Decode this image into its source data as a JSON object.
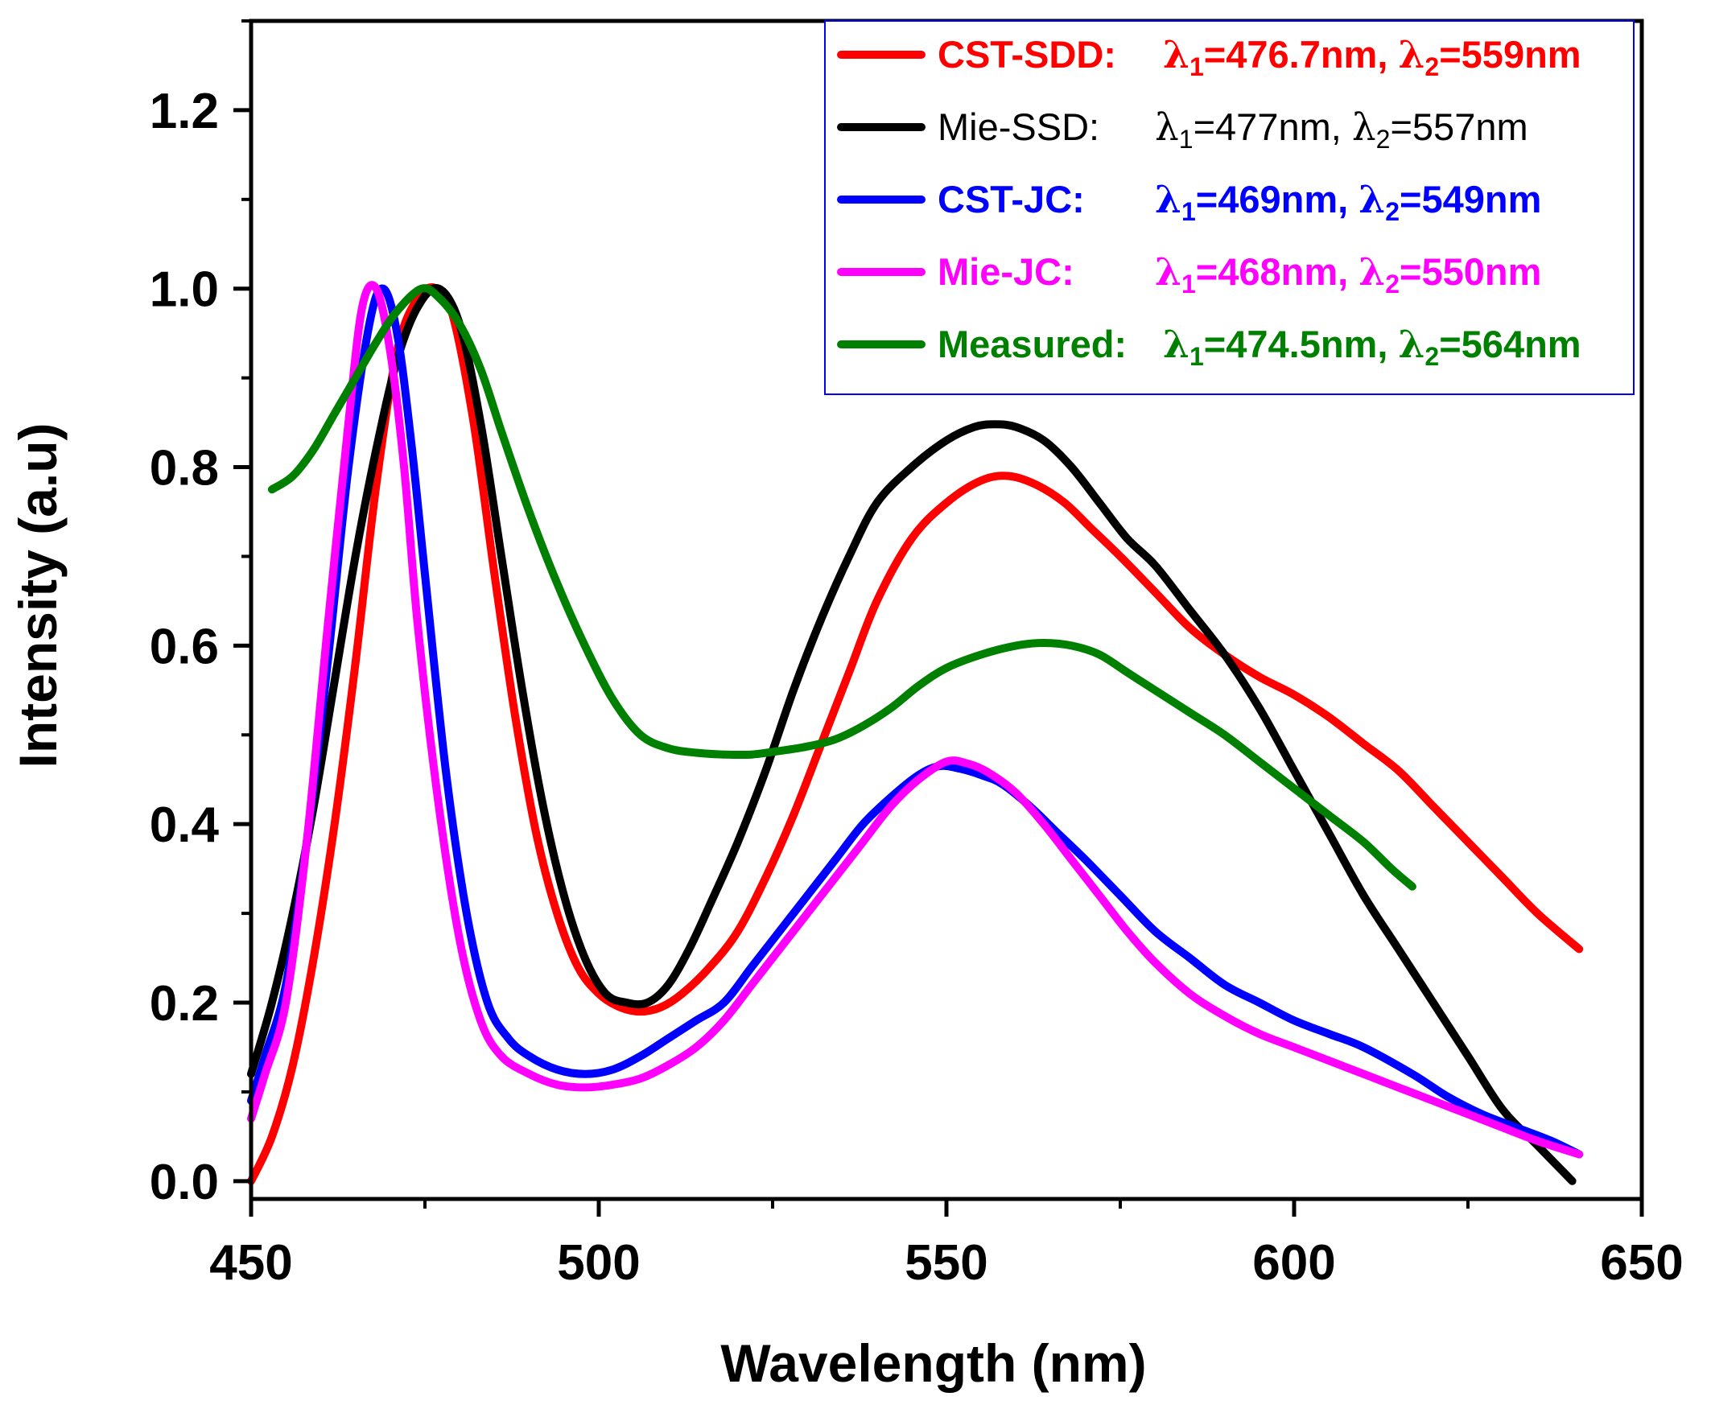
{
  "chart_data": {
    "type": "line",
    "xlabel": "Wavelength (nm)",
    "ylabel": "Intensity (a.u)",
    "xlim": [
      450,
      650
    ],
    "ylim": [
      -0.02,
      1.3
    ],
    "x_ticks": [
      450,
      500,
      550,
      600,
      650
    ],
    "x_tick_labels": [
      "450",
      "500",
      "550",
      "600",
      "650"
    ],
    "y_ticks": [
      0.0,
      0.2,
      0.4,
      0.6,
      0.8,
      1.0,
      1.2
    ],
    "y_tick_labels": [
      "0.0",
      "0.2",
      "0.4",
      "0.6",
      "0.8",
      "1.0",
      "1.2"
    ],
    "grid": false,
    "legend_position": "top-right",
    "series": [
      {
        "name": "CST-SDD:",
        "legend_lambda1": "476.7nm",
        "legend_lambda2": "559nm",
        "color": "#ff0000",
        "x": [
          450,
          453,
          456,
          459,
          462,
          465,
          468,
          471,
          474,
          476.7,
          479,
          482,
          485,
          488,
          491,
          494,
          497,
          500,
          503,
          506,
          509,
          512,
          516,
          520,
          524,
          528,
          532,
          536,
          540,
          545,
          550,
          555,
          559,
          563,
          567,
          571,
          575,
          580,
          585,
          590,
          595,
          600,
          605,
          610,
          615,
          620,
          625,
          630,
          635,
          641
        ],
        "y": [
          0.0,
          0.05,
          0.13,
          0.25,
          0.4,
          0.58,
          0.78,
          0.93,
          0.99,
          1.0,
          0.97,
          0.85,
          0.68,
          0.52,
          0.39,
          0.3,
          0.24,
          0.21,
          0.195,
          0.19,
          0.195,
          0.21,
          0.24,
          0.28,
          0.34,
          0.41,
          0.49,
          0.57,
          0.65,
          0.72,
          0.76,
          0.785,
          0.79,
          0.78,
          0.76,
          0.73,
          0.7,
          0.66,
          0.62,
          0.59,
          0.565,
          0.545,
          0.52,
          0.49,
          0.46,
          0.42,
          0.38,
          0.34,
          0.3,
          0.26
        ]
      },
      {
        "name": "Mie-SSD:",
        "legend_lambda1": "477nm",
        "legend_lambda2": "557nm",
        "color": "#000000",
        "x": [
          450,
          453,
          456,
          459,
          462,
          465,
          468,
          471,
          474,
          477,
          480,
          483,
          486,
          489,
          492,
          495,
          498,
          501,
          504,
          507,
          510,
          513,
          516,
          520,
          524,
          528,
          532,
          536,
          540,
          545,
          550,
          554,
          557,
          560,
          564,
          568,
          572,
          576,
          580,
          585,
          590,
          595,
          600,
          605,
          610,
          615,
          620,
          625,
          630,
          635,
          640
        ],
        "y": [
          0.12,
          0.2,
          0.3,
          0.42,
          0.56,
          0.7,
          0.82,
          0.92,
          0.98,
          1.0,
          0.96,
          0.85,
          0.7,
          0.55,
          0.42,
          0.32,
          0.25,
          0.21,
          0.2,
          0.2,
          0.22,
          0.26,
          0.31,
          0.38,
          0.46,
          0.55,
          0.63,
          0.7,
          0.76,
          0.8,
          0.83,
          0.845,
          0.848,
          0.845,
          0.83,
          0.8,
          0.76,
          0.72,
          0.69,
          0.64,
          0.59,
          0.53,
          0.46,
          0.39,
          0.32,
          0.26,
          0.2,
          0.14,
          0.08,
          0.04,
          0.0
        ]
      },
      {
        "name": "CST-JC:",
        "legend_lambda1": "469nm",
        "legend_lambda2": "549nm",
        "color": "#0000ff",
        "x": [
          450,
          452,
          455,
          458,
          461,
          464,
          467,
          469,
          471,
          473,
          475,
          478,
          481,
          484,
          487,
          490,
          494,
          498,
          502,
          506,
          510,
          514,
          518,
          522,
          526,
          530,
          534,
          538,
          542,
          546,
          549,
          552,
          555,
          558,
          562,
          566,
          570,
          575,
          580,
          585,
          590,
          595,
          600,
          605,
          610,
          617,
          622,
          627,
          632,
          637,
          641
        ],
        "y": [
          0.09,
          0.14,
          0.22,
          0.38,
          0.58,
          0.8,
          0.96,
          1.0,
          0.95,
          0.83,
          0.68,
          0.46,
          0.3,
          0.2,
          0.16,
          0.14,
          0.125,
          0.12,
          0.125,
          0.14,
          0.16,
          0.18,
          0.2,
          0.24,
          0.28,
          0.32,
          0.36,
          0.4,
          0.43,
          0.455,
          0.465,
          0.462,
          0.455,
          0.445,
          0.42,
          0.39,
          0.36,
          0.32,
          0.28,
          0.25,
          0.22,
          0.2,
          0.18,
          0.165,
          0.15,
          0.12,
          0.095,
          0.075,
          0.06,
          0.045,
          0.03
        ]
      },
      {
        "name": "Mie-JC:",
        "legend_lambda1": "468nm",
        "legend_lambda2": "550nm",
        "color": "#ff00ff",
        "x": [
          450,
          452,
          455,
          458,
          461,
          464,
          466,
          468,
          470,
          472,
          474,
          477,
          480,
          483,
          486,
          490,
          494,
          498,
          502,
          506,
          510,
          514,
          518,
          522,
          526,
          530,
          534,
          538,
          542,
          546,
          550,
          553,
          556,
          560,
          564,
          568,
          572,
          576,
          580,
          585,
          590,
          595,
          600,
          605,
          610,
          615,
          620,
          625,
          630,
          635,
          641
        ],
        "y": [
          0.07,
          0.12,
          0.2,
          0.38,
          0.62,
          0.85,
          0.98,
          1.0,
          0.93,
          0.8,
          0.62,
          0.42,
          0.27,
          0.18,
          0.14,
          0.12,
          0.108,
          0.105,
          0.108,
          0.115,
          0.13,
          0.15,
          0.18,
          0.22,
          0.26,
          0.3,
          0.34,
          0.38,
          0.42,
          0.45,
          0.47,
          0.468,
          0.458,
          0.435,
          0.4,
          0.36,
          0.32,
          0.28,
          0.245,
          0.21,
          0.185,
          0.165,
          0.15,
          0.135,
          0.12,
          0.105,
          0.09,
          0.075,
          0.06,
          0.045,
          0.03
        ]
      },
      {
        "name": "Measured:",
        "legend_lambda1": "474.5nm",
        "legend_lambda2": "564nm",
        "color": "#008000",
        "x": [
          453,
          456,
          459,
          462,
          465,
          468,
          471,
          474.5,
          477,
          480,
          483,
          486,
          490,
          494,
          498,
          502,
          506,
          510,
          514,
          518,
          522,
          526,
          530,
          534,
          538,
          542,
          546,
          550,
          555,
          560,
          564,
          568,
          572,
          576,
          580,
          585,
          590,
          595,
          600,
          605,
          610,
          614,
          617
        ],
        "y": [
          0.775,
          0.79,
          0.82,
          0.86,
          0.9,
          0.94,
          0.975,
          1.0,
          0.99,
          0.96,
          0.91,
          0.84,
          0.75,
          0.67,
          0.6,
          0.54,
          0.5,
          0.485,
          0.48,
          0.478,
          0.478,
          0.482,
          0.487,
          0.495,
          0.51,
          0.53,
          0.555,
          0.575,
          0.59,
          0.6,
          0.603,
          0.6,
          0.59,
          0.57,
          0.55,
          0.525,
          0.5,
          0.47,
          0.44,
          0.41,
          0.38,
          0.35,
          0.33
        ]
      }
    ]
  },
  "legend": {
    "lambda_symbol": "λ",
    "sub1": "1",
    "sub2": "2",
    "eq": "=",
    "sep": ", "
  }
}
